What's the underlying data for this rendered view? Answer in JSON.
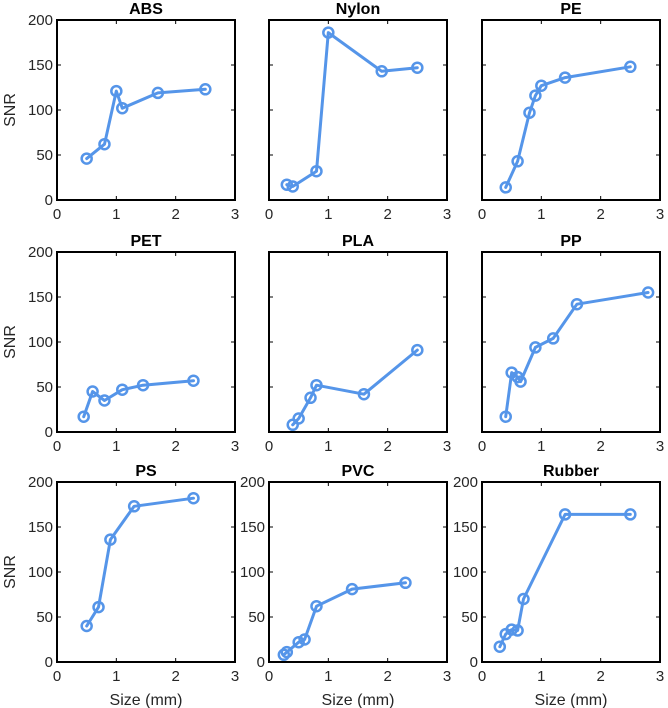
{
  "figure": {
    "line_color": "#5595E9"
  },
  "chart_data": [
    {
      "type": "line",
      "title": "ABS",
      "xlabel": "",
      "ylabel": "SNR",
      "xlim": [
        0,
        3
      ],
      "ylim": [
        0,
        200
      ],
      "xticks": [
        "0",
        "1",
        "2",
        "3"
      ],
      "yticks": [
        "0",
        "50",
        "100",
        "150",
        "200"
      ],
      "x": [
        0.5,
        0.8,
        1.0,
        1.1,
        1.7,
        2.5
      ],
      "y": [
        46,
        62,
        121,
        102,
        119,
        123
      ]
    },
    {
      "type": "line",
      "title": "Nylon",
      "xlabel": "",
      "ylabel": "",
      "xlim": [
        0,
        3
      ],
      "ylim": [
        0,
        200
      ],
      "xticks": [
        "0",
        "1",
        "2",
        "3"
      ],
      "yticks": [],
      "x": [
        0.3,
        0.4,
        0.8,
        1.0,
        1.9,
        2.5
      ],
      "y": [
        17,
        15,
        32,
        186,
        143,
        147
      ]
    },
    {
      "type": "line",
      "title": "PE",
      "xlabel": "",
      "ylabel": "",
      "xlim": [
        0,
        3
      ],
      "ylim": [
        0,
        200
      ],
      "xticks": [
        "0",
        "1",
        "2",
        "3"
      ],
      "yticks": [],
      "x": [
        0.4,
        0.6,
        0.8,
        0.9,
        1.0,
        1.4,
        2.5
      ],
      "y": [
        14,
        43,
        97,
        116,
        127,
        136,
        148
      ]
    },
    {
      "type": "line",
      "title": "PET",
      "xlabel": "",
      "ylabel": "SNR",
      "xlim": [
        0,
        3
      ],
      "ylim": [
        0,
        200
      ],
      "xticks": [
        "0",
        "1",
        "2",
        "3"
      ],
      "yticks": [
        "0",
        "50",
        "100",
        "150",
        "200"
      ],
      "x": [
        0.45,
        0.6,
        0.8,
        1.1,
        1.45,
        2.3
      ],
      "y": [
        17,
        45,
        35,
        47,
        52,
        57
      ]
    },
    {
      "type": "line",
      "title": "PLA",
      "xlabel": "",
      "ylabel": "",
      "xlim": [
        0,
        3
      ],
      "ylim": [
        0,
        200
      ],
      "xticks": [
        "0",
        "1",
        "2",
        "3"
      ],
      "yticks": [],
      "x": [
        0.4,
        0.5,
        0.7,
        0.8,
        1.6,
        2.5
      ],
      "y": [
        8,
        15,
        38,
        52,
        42,
        91
      ]
    },
    {
      "type": "line",
      "title": "PP",
      "xlabel": "",
      "ylabel": "",
      "xlim": [
        0,
        3
      ],
      "ylim": [
        0,
        200
      ],
      "xticks": [
        "0",
        "1",
        "2",
        "3"
      ],
      "yticks": [],
      "x": [
        0.4,
        0.5,
        0.6,
        0.65,
        0.9,
        1.2,
        1.6,
        2.8
      ],
      "y": [
        17,
        66,
        61,
        56,
        94,
        104,
        142,
        155
      ]
    },
    {
      "type": "line",
      "title": "PS",
      "xlabel": "Size (mm)",
      "ylabel": "SNR",
      "xlim": [
        0,
        3
      ],
      "ylim": [
        0,
        200
      ],
      "xticks": [
        "0",
        "1",
        "2",
        "3"
      ],
      "yticks": [
        "0",
        "50",
        "100",
        "150",
        "200"
      ],
      "x": [
        0.5,
        0.7,
        0.9,
        1.3,
        2.3
      ],
      "y": [
        40,
        61,
        136,
        173,
        182
      ]
    },
    {
      "type": "line",
      "title": "PVC",
      "xlabel": "Size (mm)",
      "ylabel": "",
      "xlim": [
        0,
        3
      ],
      "ylim": [
        0,
        200
      ],
      "xticks": [
        "0",
        "1",
        "2",
        "3"
      ],
      "yticks": [
        "0",
        "50",
        "100",
        "150",
        "200"
      ],
      "x": [
        0.25,
        0.3,
        0.5,
        0.6,
        0.8,
        1.4,
        2.3
      ],
      "y": [
        8,
        11,
        22,
        25,
        62,
        81,
        88
      ]
    },
    {
      "type": "line",
      "title": "Rubber",
      "xlabel": "Size (mm)",
      "ylabel": "",
      "xlim": [
        0,
        3
      ],
      "ylim": [
        0,
        200
      ],
      "xticks": [
        "0",
        "1",
        "2",
        "3"
      ],
      "yticks": [
        "0",
        "50",
        "100",
        "150",
        "200"
      ],
      "x": [
        0.3,
        0.4,
        0.5,
        0.6,
        0.7,
        1.4,
        2.5
      ],
      "y": [
        17,
        31,
        36,
        35,
        70,
        164,
        164
      ]
    }
  ]
}
